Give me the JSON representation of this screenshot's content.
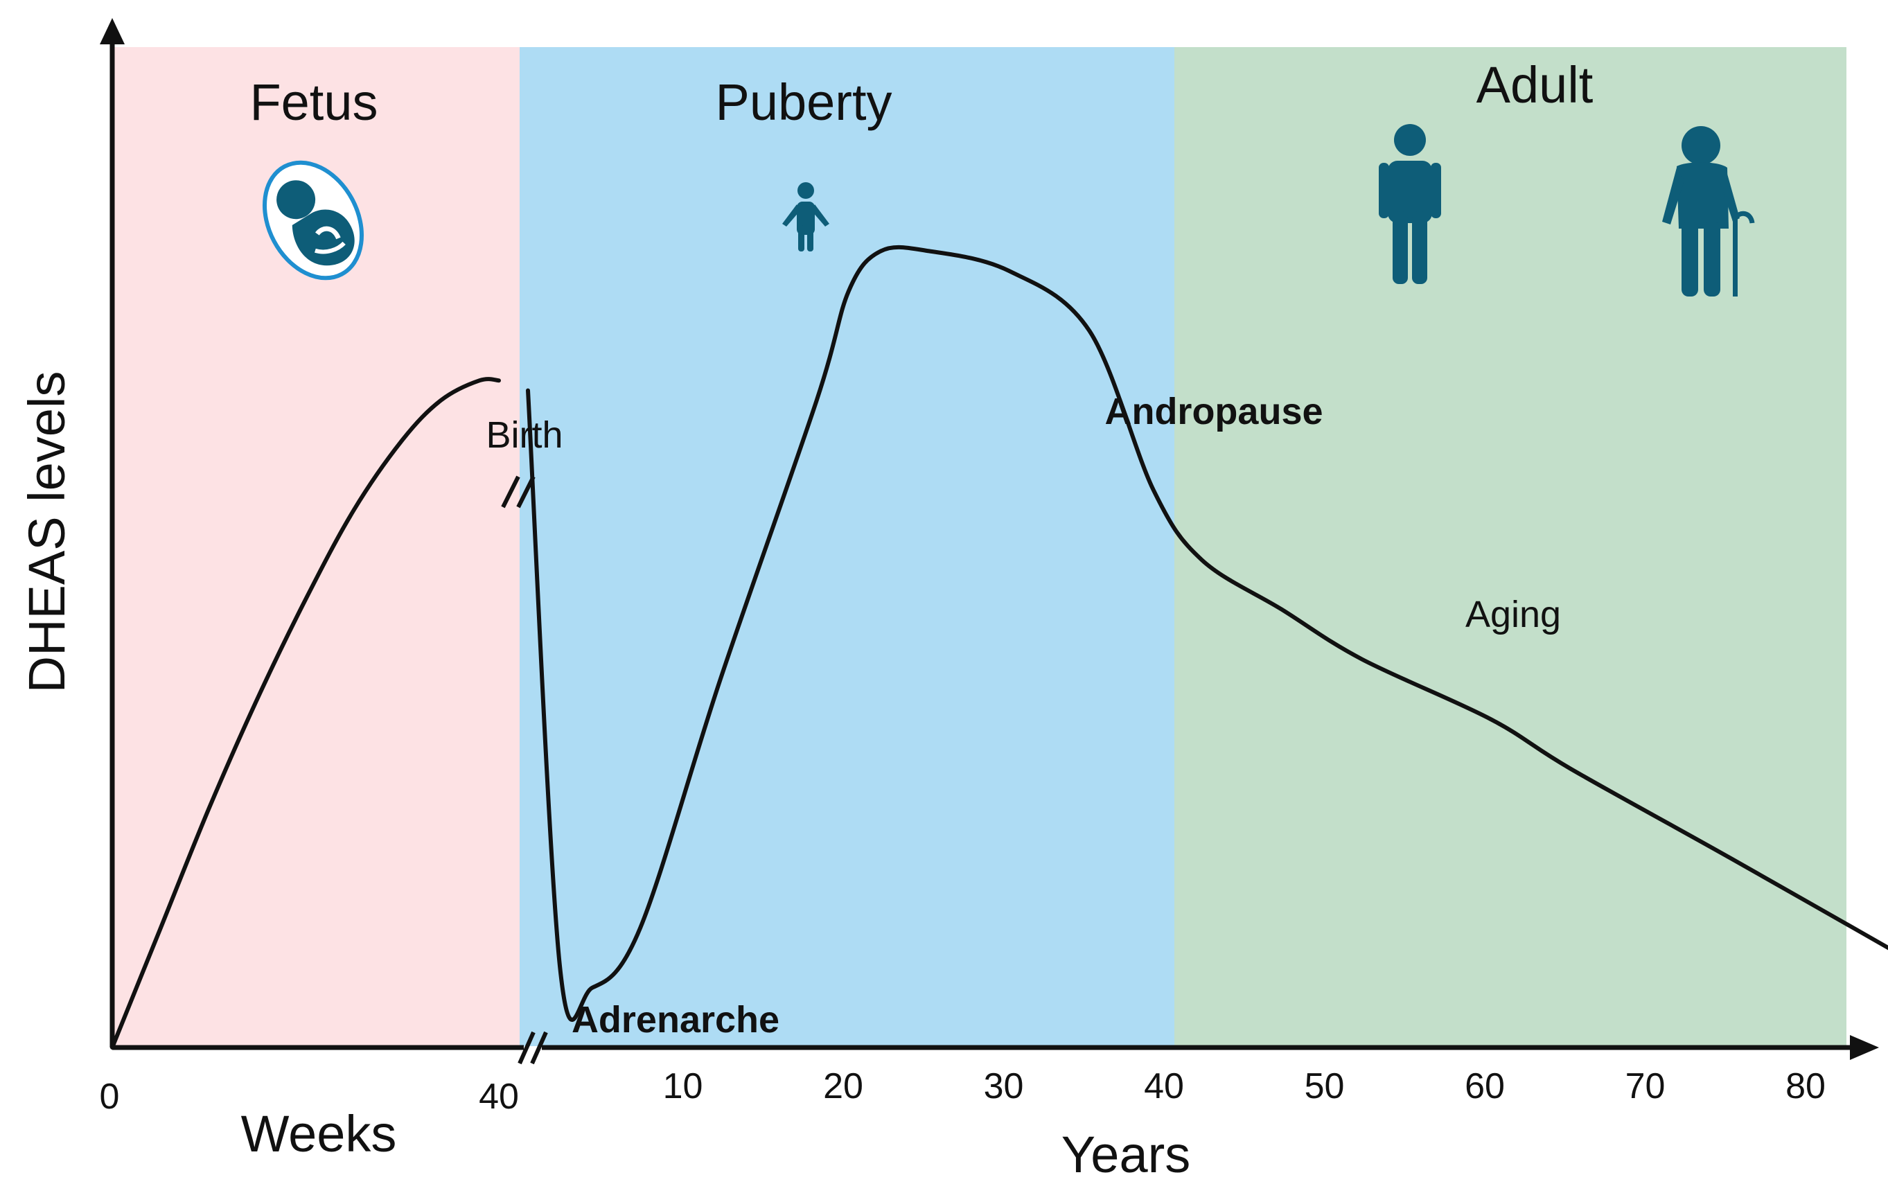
{
  "chart_data": {
    "type": "line",
    "title": "",
    "ylabel": "DHEAS levels",
    "x_segments": [
      {
        "unit_label": "Weeks",
        "ticks": [
          "0",
          "40"
        ],
        "range": [
          0,
          40
        ]
      },
      {
        "unit_label": "Years",
        "ticks": [
          "10",
          "20",
          "30",
          "40",
          "50",
          "60",
          "70",
          "80"
        ],
        "range": [
          0,
          87
        ]
      }
    ],
    "phases": [
      {
        "label": "Fetus",
        "color": "#fde2e4",
        "icon": "fetus-icon"
      },
      {
        "label": "Puberty",
        "color": "#aedcf4",
        "icon": "child-icon"
      },
      {
        "label": "Adult",
        "color": "#c3dfca",
        "icons": [
          "adult-man-icon",
          "elderly-man-with-cane-icon"
        ]
      }
    ],
    "annotations": [
      "Birth",
      "Adrenarche",
      "Andropause",
      "Aging"
    ],
    "icon_color": "#0e5d78",
    "y_ticks": "none",
    "series": [
      {
        "fetal_weeks": [
          [
            0,
            0
          ],
          [
            5,
            0.12
          ],
          [
            10,
            0.24
          ],
          [
            15,
            0.35
          ],
          [
            20,
            0.45
          ],
          [
            25,
            0.54
          ],
          [
            30,
            0.61
          ],
          [
            34,
            0.65
          ],
          [
            38,
            0.67
          ],
          [
            40,
            0.67
          ]
        ],
        "postnatal_years": [
          [
            0,
            0.66
          ],
          [
            2,
            0.08
          ],
          [
            4,
            0.06
          ],
          [
            7,
            0.12
          ],
          [
            12,
            0.37
          ],
          [
            18,
            0.65
          ],
          [
            20,
            0.76
          ],
          [
            22,
            0.8
          ],
          [
            25,
            0.8
          ],
          [
            30,
            0.78
          ],
          [
            35,
            0.72
          ],
          [
            39,
            0.56
          ],
          [
            42,
            0.49
          ],
          [
            47,
            0.44
          ],
          [
            52,
            0.39
          ],
          [
            60,
            0.33
          ],
          [
            65,
            0.28
          ],
          [
            75,
            0.19
          ],
          [
            87,
            0.08
          ]
        ]
      }
    ]
  }
}
